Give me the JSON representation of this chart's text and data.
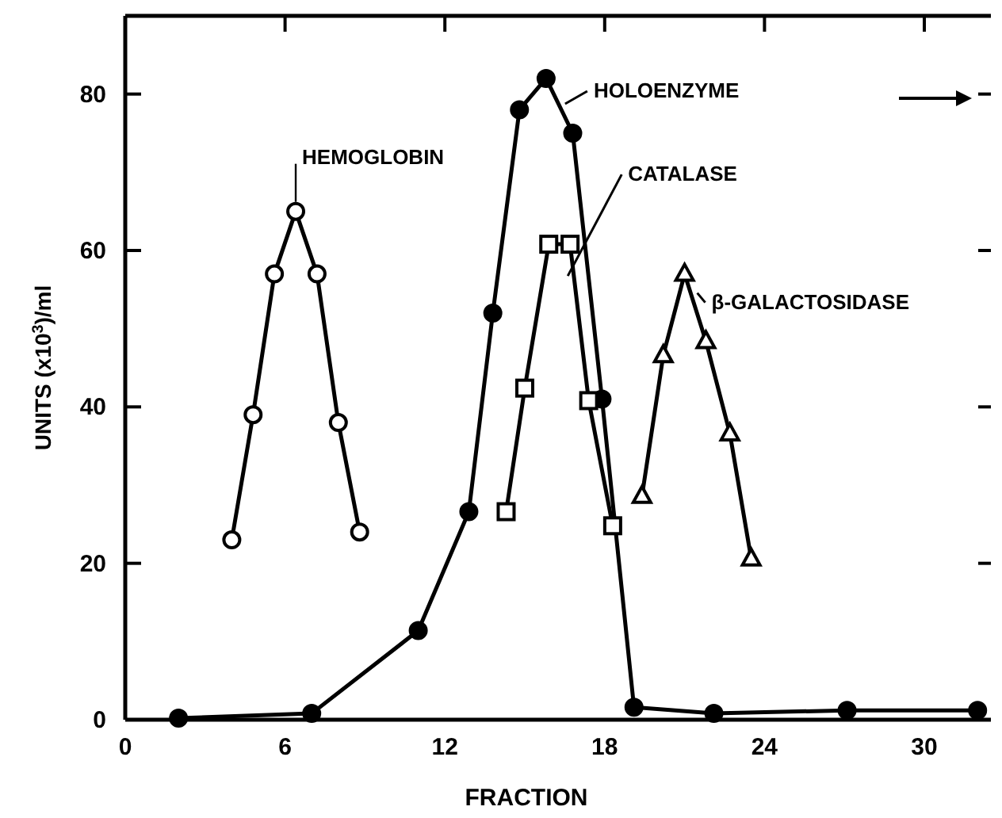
{
  "chart_data": {
    "type": "line",
    "xlabel": "FRACTION",
    "ylabel": "UNITS (x10$^{3}$)/ml",
    "xlim": [
      0,
      32.5
    ],
    "ylim": [
      0,
      90
    ],
    "xticks": [
      0,
      6,
      12,
      18,
      24,
      30
    ],
    "yticks": [
      0,
      20,
      40,
      60,
      80
    ],
    "grid": false,
    "legend": "top right",
    "line_style": "solid",
    "series": [
      {
        "name": "HEMOGLOBIN",
        "color": "#000000",
        "marker": "circle",
        "x": [
          4,
          4.8,
          5.6,
          6.4,
          7.2,
          8,
          8.8
        ],
        "values": [
          23,
          39,
          57,
          65,
          57,
          38,
          24
        ]
      },
      {
        "name": "HOLOENZYME",
        "color": "#000000",
        "marker": "circle",
        "x": [
          2,
          7,
          11,
          12.9,
          13.8,
          14.8,
          15.8,
          16.8,
          17.9,
          19.1,
          22.1,
          27.1,
          32
        ],
        "values": [
          0.2,
          0.8,
          11.4,
          26.6,
          52,
          78,
          82,
          75,
          41,
          1.6,
          0.8,
          1.2,
          1.2
        ]
      },
      {
        "name": "CATALASE",
        "color": "#000000",
        "marker": "square",
        "x": [
          14.3,
          15,
          15.9,
          16.7,
          17.4,
          18.3
        ],
        "values": [
          26.6,
          42.4,
          60.8,
          60.8,
          40.8,
          24.8
        ]
      },
      {
        "name": "β-GALACTOSIDASE",
        "color": "#000000",
        "marker": "triangle",
        "x": [
          19.4,
          20.2,
          21,
          21.8,
          22.7,
          23.5
        ],
        "values": [
          28.6,
          46.6,
          57,
          48.4,
          36.6,
          20.6
        ]
      }
    ]
  }
}
